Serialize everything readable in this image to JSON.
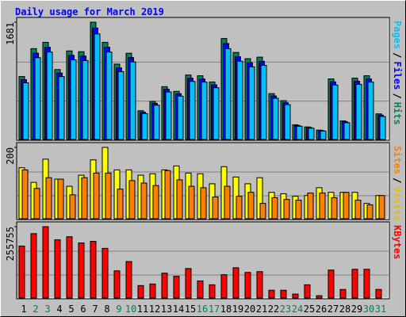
{
  "chart_data": {
    "type": "bar",
    "title": "Daily usage for March 2019",
    "categories": [
      "1",
      "2",
      "3",
      "4",
      "5",
      "6",
      "7",
      "8",
      "9",
      "10",
      "11",
      "12",
      "13",
      "14",
      "15",
      "16",
      "17",
      "18",
      "19",
      "20",
      "21",
      "22",
      "23",
      "24",
      "25",
      "26",
      "27",
      "28",
      "29",
      "30",
      "31"
    ],
    "category_colors": [
      "#000000",
      "#00805c",
      "#00805c",
      "#000000",
      "#000000",
      "#000000",
      "#000000",
      "#000000",
      "#00805c",
      "#00805c",
      "#000000",
      "#000000",
      "#000000",
      "#000000",
      "#000000",
      "#00805c",
      "#00805c",
      "#000000",
      "#000000",
      "#000000",
      "#000000",
      "#000000",
      "#00805c",
      "#00805c",
      "#000000",
      "#000000",
      "#000000",
      "#000000",
      "#000000",
      "#00805c",
      "#00805c"
    ],
    "legend_separator": "/",
    "panels": [
      {
        "ylim": [
          0,
          1681
        ],
        "yticks": [
          1681
        ],
        "series": [
          {
            "name": "Hits",
            "color": "#00805c",
            "values": [
              902,
              1302,
              1392,
              1002,
              1269,
              1258,
              1681,
              1392,
              1080,
              1236,
              412,
              545,
              757,
              690,
              924,
              913,
              824,
              1447,
              1247,
              1158,
              1180,
              657,
              556,
              211,
              180,
              134,
              868,
              267,
              879,
              913,
              367
            ]
          },
          {
            "name": "Files",
            "color": "#0000ff",
            "values": [
              857,
              1237,
              1322,
              952,
              1206,
              1195,
              1597,
              1322,
              1026,
              1174,
              391,
              518,
              719,
              656,
              878,
              867,
              783,
              1375,
              1185,
              1100,
              1121,
              624,
              528,
              200,
              171,
              127,
              825,
              254,
              835,
              867,
              349
            ]
          },
          {
            "name": "Pages",
            "color": "#00c0ff",
            "values": [
              812,
              1172,
              1253,
              902,
              1142,
              1132,
              1513,
              1253,
              972,
              1112,
              371,
              491,
              681,
              621,
              832,
              822,
              742,
              1302,
              1122,
              1042,
              1062,
              591,
              500,
              190,
              162,
              121,
              781,
              240,
              791,
              822,
              330
            ]
          }
        ]
      },
      {
        "ylim": [
          0,
          200
        ],
        "yticks": [
          200
        ],
        "series": [
          {
            "name": "Visits",
            "color": "#ffff00",
            "values": [
              143,
              102,
              167,
              111,
              91,
              122,
              165,
              200,
              137,
              137,
              122,
              126,
              137,
              148,
              128,
              126,
              98,
              146,
              117,
              98,
              115,
              74,
              70,
              63,
              65,
              87,
              74,
              74,
              74,
              43,
              65
            ]
          },
          {
            "name": "Sites",
            "color": "#ff8000",
            "values": [
              137,
              85,
              115,
              111,
              67,
              115,
              128,
              128,
              83,
              107,
              100,
              93,
              135,
              109,
              91,
              87,
              61,
              91,
              63,
              74,
              43,
              59,
              54,
              52,
              72,
              72,
              59,
              74,
              52,
              39,
              65
            ]
          }
        ]
      },
      {
        "ylim": [
          0,
          255755
        ],
        "yticks": [
          255755
        ],
        "series": [
          {
            "name": "KBytes",
            "color": "#ff0000",
            "values": [
              186259,
              230740,
              255755,
              208500,
              219600,
              197400,
              203000,
              177900,
              97300,
              130700,
              44500,
              50000,
              89000,
              77800,
              105600,
              61200,
              47300,
              83400,
              108400,
              91700,
              94500,
              27800,
              27800,
              13900,
              47300,
              8300,
              100100,
              30600,
              102900,
              102900,
              30600
            ]
          }
        ]
      }
    ]
  }
}
